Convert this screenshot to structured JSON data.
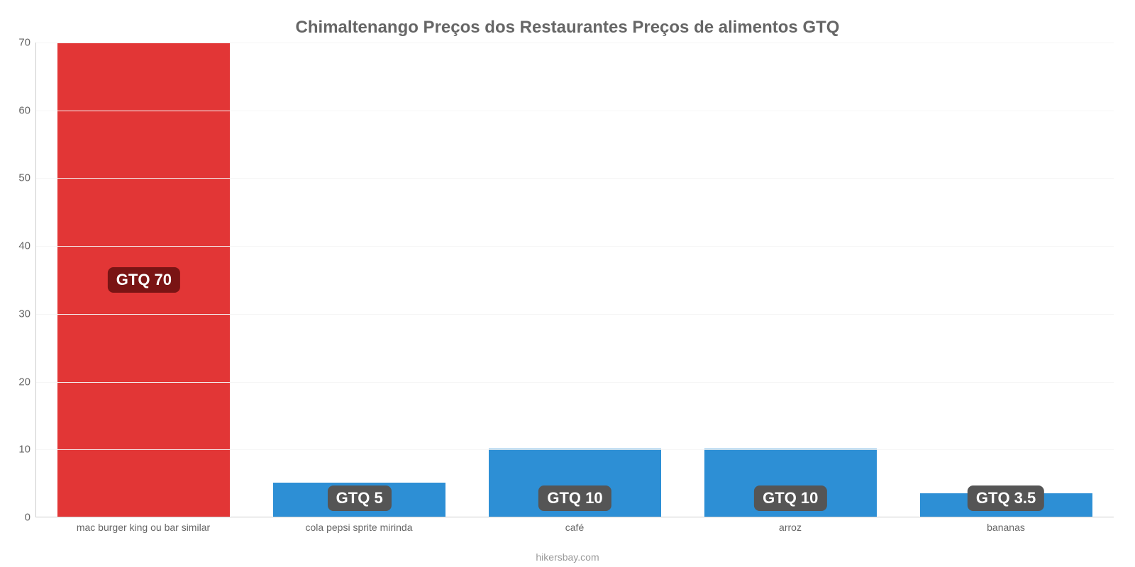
{
  "chart": {
    "type": "bar",
    "title": "Chimaltenango Preços dos Restaurantes Preços de alimentos GTQ",
    "title_fontsize": 24,
    "title_color": "#666666",
    "categories": [
      "mac burger king ou bar similar",
      "cola pepsi sprite mirinda",
      "café",
      "arroz",
      "bananas"
    ],
    "values": [
      70,
      5,
      10,
      10,
      3.5
    ],
    "value_labels": [
      "GTQ 70",
      "GTQ 5",
      "GTQ 10",
      "GTQ 10",
      "GTQ 3.5"
    ],
    "bar_colors": [
      "#e23636",
      "#2d8fd5",
      "#2d8fd5",
      "#2d8fd5",
      "#2d8fd5"
    ],
    "badge_colors": [
      "#7a1414",
      "#555555",
      "#555555",
      "#555555",
      "#555555"
    ],
    "ylim": [
      0,
      70
    ],
    "ytick_step": 10,
    "grid_color": "#f5f5f5",
    "axis_color": "#cccccc",
    "background_color": "#ffffff",
    "bar_width": 0.8,
    "label_color": "#666666",
    "label_fontsize": 14,
    "ytick_fontsize": 15,
    "badge_fontsize": 22
  },
  "footer": "hikersbay.com"
}
